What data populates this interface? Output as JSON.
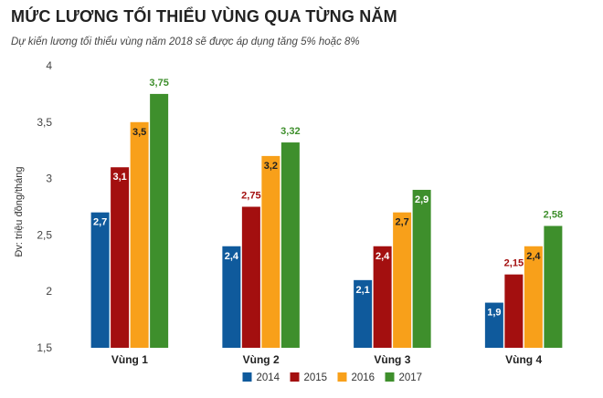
{
  "header": {
    "title": "MỨC LƯƠNG TỐI THIỂU VÙNG QUA TỪNG NĂM",
    "subtitle": "Dự kiến lương tối thiểu vùng năm 2018 sẽ được áp dụng tăng 5% hoặc 8%"
  },
  "chart_data": {
    "type": "bar",
    "title": "MỨC LƯƠNG TỐI THIỂU VÙNG QUA TỪNG NĂM",
    "subtitle": "Dự kiến lương tối thiểu vùng năm 2018 sẽ được áp dụng tăng 5% hoặc 8%",
    "xlabel": "",
    "ylabel": "Đv: triệu đồng/tháng",
    "ylim": [
      1.5,
      4
    ],
    "yticks": [
      "1,5",
      "2",
      "2,5",
      "3",
      "3,5",
      "4"
    ],
    "ytick_values": [
      1.5,
      2,
      2.5,
      3,
      3.5,
      4
    ],
    "grid": false,
    "legend_position": "bottom",
    "categories": [
      "Vùng 1",
      "Vùng 2",
      "Vùng 3",
      "Vùng 4"
    ],
    "series": [
      {
        "name": "2014",
        "color": "#0f5a9c",
        "values": [
          2.7,
          2.4,
          2.1,
          1.9
        ],
        "labels": [
          "2,7",
          "2,4",
          "2,1",
          "1,9"
        ],
        "label_inside": [
          true,
          true,
          true,
          true
        ]
      },
      {
        "name": "2015",
        "color": "#a30f0f",
        "values": [
          3.1,
          2.75,
          2.4,
          2.15
        ],
        "labels": [
          "3,1",
          "2,75",
          "2,4",
          "2,15"
        ],
        "label_inside": [
          true,
          false,
          true,
          false
        ]
      },
      {
        "name": "2016",
        "color": "#f8a01a",
        "values": [
          3.5,
          3.2,
          2.7,
          2.4
        ],
        "labels": [
          "3,5",
          "3,2",
          "2,7",
          "2,4"
        ],
        "label_inside": [
          true,
          true,
          true,
          true
        ]
      },
      {
        "name": "2017",
        "color": "#3e8f2c",
        "values": [
          3.75,
          3.32,
          2.9,
          2.58
        ],
        "labels": [
          "3,75",
          "3,32",
          "2,9",
          "2,58"
        ],
        "label_inside": [
          false,
          false,
          true,
          false
        ]
      }
    ]
  }
}
